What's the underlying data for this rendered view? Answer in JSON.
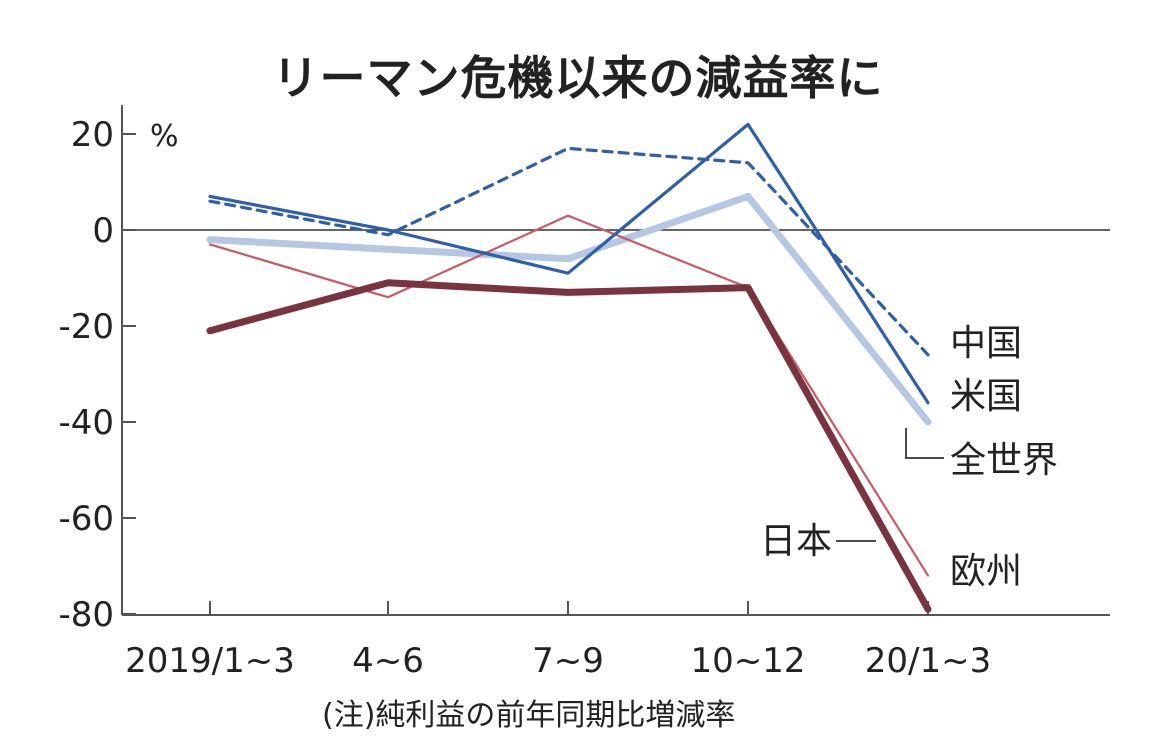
{
  "chart_data": {
    "type": "line",
    "title": "リーマン危機以来の減益率に",
    "note": "(注)純利益の前年同期比増減率",
    "y_unit": "%",
    "categories": [
      "2019/1~3",
      "4~6",
      "7~9",
      "10~12",
      "20/1~3"
    ],
    "ylim": [
      -80,
      20
    ],
    "yticks": [
      20,
      0,
      -20,
      -40,
      -60,
      -80
    ],
    "grid": false,
    "series": [
      {
        "name": "中国",
        "values": [
          6,
          -1,
          17,
          14,
          -26
        ],
        "color": "#2f5fa8",
        "style": "dashed"
      },
      {
        "name": "米国",
        "values": [
          7,
          0,
          -9,
          22,
          -36
        ],
        "color": "#2f5fa8",
        "style": "solid"
      },
      {
        "name": "全世界",
        "values": [
          -2,
          -4,
          -6,
          7,
          -40
        ],
        "color": "#b5c7e3",
        "style": "solid-thick"
      },
      {
        "name": "日本",
        "values": [
          -21,
          -11,
          -13,
          -12,
          -79
        ],
        "color": "#7a3340",
        "style": "solid-thick"
      },
      {
        "name": "欧州",
        "values": [
          -3,
          -14,
          3,
          -12,
          -72
        ],
        "color": "#c75a66",
        "style": "solid-thin"
      }
    ]
  }
}
